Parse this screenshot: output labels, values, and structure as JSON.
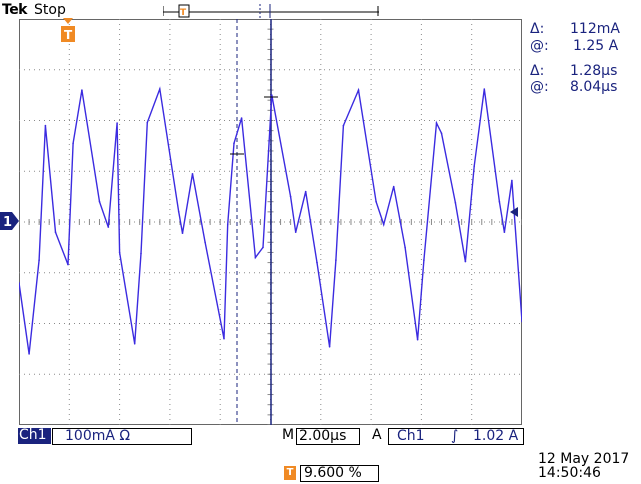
{
  "status": {
    "brand": "Tek",
    "state": "Stop"
  },
  "marker_letter": "T",
  "channel_marker": "1",
  "measurements": {
    "delta_symbol": "Δ:",
    "at_symbol": "@:",
    "current_delta": "112mA",
    "current_at": "1.25 A",
    "time_delta": "1.28µs",
    "time_at": "8.04µs"
  },
  "bottom_bar": {
    "channel": "Ch1",
    "scale": "100mA Ω",
    "timebase_prefix": "M",
    "timebase": "2.00µs",
    "trigger_prefix": "A",
    "trigger_channel": "Ch1",
    "trigger_slope": "∫",
    "trigger_level": "1.02 A"
  },
  "trigger_position": "9.600 %",
  "date": "12 May 2017",
  "time": "14:50:46",
  "colors": {
    "trace": "#3b2be0",
    "cursor": "#1a237e",
    "marker": "#f08a24",
    "grid": "#8a8a8a"
  },
  "chart_data": {
    "type": "line",
    "title": "",
    "xlabel": "",
    "ylabel": "",
    "x_unit": "µs",
    "y_unit": "mA",
    "xlim": [
      0,
      20
    ],
    "ylim": [
      -400,
      400
    ],
    "grid": true,
    "series": [
      {
        "values": [
          [
            0.0,
            -120
          ],
          [
            0.4,
            -260
          ],
          [
            0.8,
            -75
          ],
          [
            1.05,
            190
          ],
          [
            1.45,
            -20
          ],
          [
            1.95,
            -84
          ],
          [
            2.15,
            155
          ],
          [
            2.5,
            260
          ],
          [
            3.2,
            40
          ],
          [
            3.55,
            -10
          ],
          [
            3.9,
            195
          ],
          [
            4.0,
            -60
          ],
          [
            4.6,
            -240
          ],
          [
            4.85,
            -62
          ],
          [
            5.1,
            196
          ],
          [
            5.6,
            262
          ],
          [
            6.35,
            20
          ],
          [
            6.5,
            -22
          ],
          [
            6.9,
            95
          ],
          [
            7.4,
            -40
          ],
          [
            8.15,
            -230
          ],
          [
            8.3,
            -5
          ],
          [
            8.55,
            155
          ],
          [
            8.85,
            205
          ],
          [
            9.4,
            -70
          ],
          [
            9.7,
            -50
          ],
          [
            10.05,
            250
          ],
          [
            10.8,
            50
          ],
          [
            11.0,
            -20
          ],
          [
            11.4,
            60
          ],
          [
            11.85,
            -80
          ],
          [
            12.35,
            -246
          ],
          [
            12.6,
            -75
          ],
          [
            12.9,
            190
          ],
          [
            13.5,
            260
          ],
          [
            14.2,
            40
          ],
          [
            14.5,
            -5
          ],
          [
            14.9,
            70
          ],
          [
            15.35,
            -50
          ],
          [
            15.85,
            -232
          ],
          [
            16.1,
            -75
          ],
          [
            16.6,
            195
          ],
          [
            16.8,
            175
          ],
          [
            17.35,
            38
          ],
          [
            17.75,
            -78
          ],
          [
            18.1,
            110
          ],
          [
            18.5,
            262
          ],
          [
            19.1,
            40
          ],
          [
            19.3,
            -20
          ],
          [
            19.6,
            82
          ],
          [
            20.0,
            -196
          ]
        ]
      }
    ]
  }
}
